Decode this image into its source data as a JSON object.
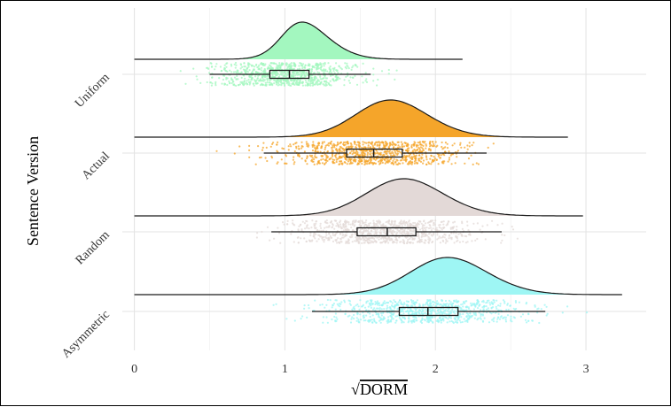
{
  "chart_data": {
    "type": "raincloud",
    "xlabel": "DORM",
    "xlabel_prefix": "√",
    "ylabel": "Sentence Version",
    "xlim": [
      -0.08,
      3.4
    ],
    "xticks": [
      0,
      1,
      2,
      3
    ],
    "grid": true,
    "legend": "none",
    "categories": [
      "Uniform",
      "Actual",
      "Random",
      "Asymmetric"
    ],
    "series": [
      {
        "name": "Uniform",
        "color": "#a3f7bf",
        "scatter_color": "#a3f7bf",
        "density": {
          "mean": 1.0,
          "sd": 0.22,
          "skew": 1.6,
          "range": [
            0.0,
            2.18
          ]
        },
        "points_range": [
          0.2,
          1.85
        ],
        "box": {
          "whisker_low": 0.5,
          "q1": 0.9,
          "median": 1.03,
          "q3": 1.16,
          "whisker_high": 1.57
        }
      },
      {
        "name": "Actual",
        "color": "#f5a52a",
        "scatter_color": "#f5a52a",
        "density": {
          "mean": 1.56,
          "sd": 0.29,
          "skew": 0.9,
          "range": [
            0.0,
            2.88
          ]
        },
        "points_range": [
          0.45,
          2.8
        ],
        "box": {
          "whisker_low": 0.86,
          "q1": 1.41,
          "median": 1.59,
          "q3": 1.78,
          "whisker_high": 2.34
        }
      },
      {
        "name": "Random",
        "color": "#e3d9d7",
        "scatter_color": "#e3d9d7",
        "density": {
          "mean": 1.65,
          "sd": 0.3,
          "skew": 0.8,
          "range": [
            0.0,
            2.98
          ]
        },
        "points_range": [
          0.8,
          2.75
        ],
        "box": {
          "whisker_low": 0.91,
          "q1": 1.48,
          "median": 1.68,
          "q3": 1.87,
          "whisker_high": 2.44
        }
      },
      {
        "name": "Asymmetric",
        "color": "#9ef6f4",
        "scatter_color": "#9ef6f4",
        "density": {
          "mean": 1.93,
          "sd": 0.31,
          "skew": 0.9,
          "range": [
            0.0,
            3.24
          ]
        },
        "points_range": [
          0.9,
          3.05
        ],
        "box": {
          "whisker_low": 1.18,
          "q1": 1.76,
          "median": 1.95,
          "q3": 2.15,
          "whisker_high": 2.73
        }
      }
    ]
  }
}
